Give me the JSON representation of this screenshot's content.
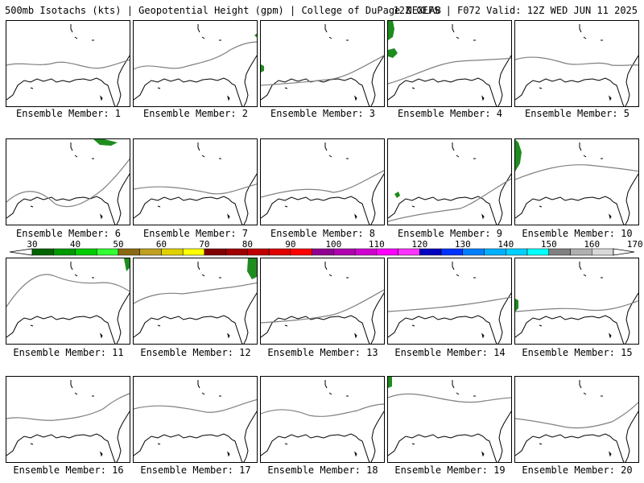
{
  "header": {
    "left": "500mb Isotachs (kts) | Geopotential Height (gpm) | College of DuPage NEXLAB",
    "right": "12Z GEFS | F072 Valid: 12Z WED JUN 11 2025"
  },
  "colorbar": {
    "labels": [
      "30",
      "40",
      "50",
      "60",
      "70",
      "80",
      "90",
      "100",
      "110",
      "120",
      "130",
      "140",
      "150",
      "160",
      "170"
    ],
    "colors": [
      "#006400",
      "#009900",
      "#00cc00",
      "#33ff33",
      "#8b6914",
      "#bfa020",
      "#e0d000",
      "#ffff00",
      "#800000",
      "#a00000",
      "#c00000",
      "#e00000",
      "#ff0000",
      "#900090",
      "#b000b0",
      "#d000d0",
      "#ff00ff",
      "#ff33ff",
      "#0000c0",
      "#0033ff",
      "#0080ff",
      "#00b0ff",
      "#00d0ff",
      "#00ffff",
      "#808080",
      "#b0b0b0",
      "#d8d8d8"
    ]
  },
  "panels": [
    {
      "caption": "Ensemble Member: 1"
    },
    {
      "caption": "Ensemble Member: 2"
    },
    {
      "caption": "Ensemble Member: 3"
    },
    {
      "caption": "Ensemble Member: 4"
    },
    {
      "caption": "Ensemble Member: 5"
    },
    {
      "caption": "Ensemble Member: 6"
    },
    {
      "caption": "Ensemble Member: 7"
    },
    {
      "caption": "Ensemble Member: 8"
    },
    {
      "caption": "Ensemble Member: 9"
    },
    {
      "caption": "Ensemble Member: 10"
    },
    {
      "caption": "Ensemble Member: 11"
    },
    {
      "caption": "Ensemble Member: 12"
    },
    {
      "caption": "Ensemble Member: 13"
    },
    {
      "caption": "Ensemble Member: 14"
    },
    {
      "caption": "Ensemble Member: 15"
    },
    {
      "caption": "Ensemble Member: 16"
    },
    {
      "caption": "Ensemble Member: 17"
    },
    {
      "caption": "Ensemble Member: 18"
    },
    {
      "caption": "Ensemble Member: 19"
    },
    {
      "caption": "Ensemble Member: 20"
    }
  ]
}
